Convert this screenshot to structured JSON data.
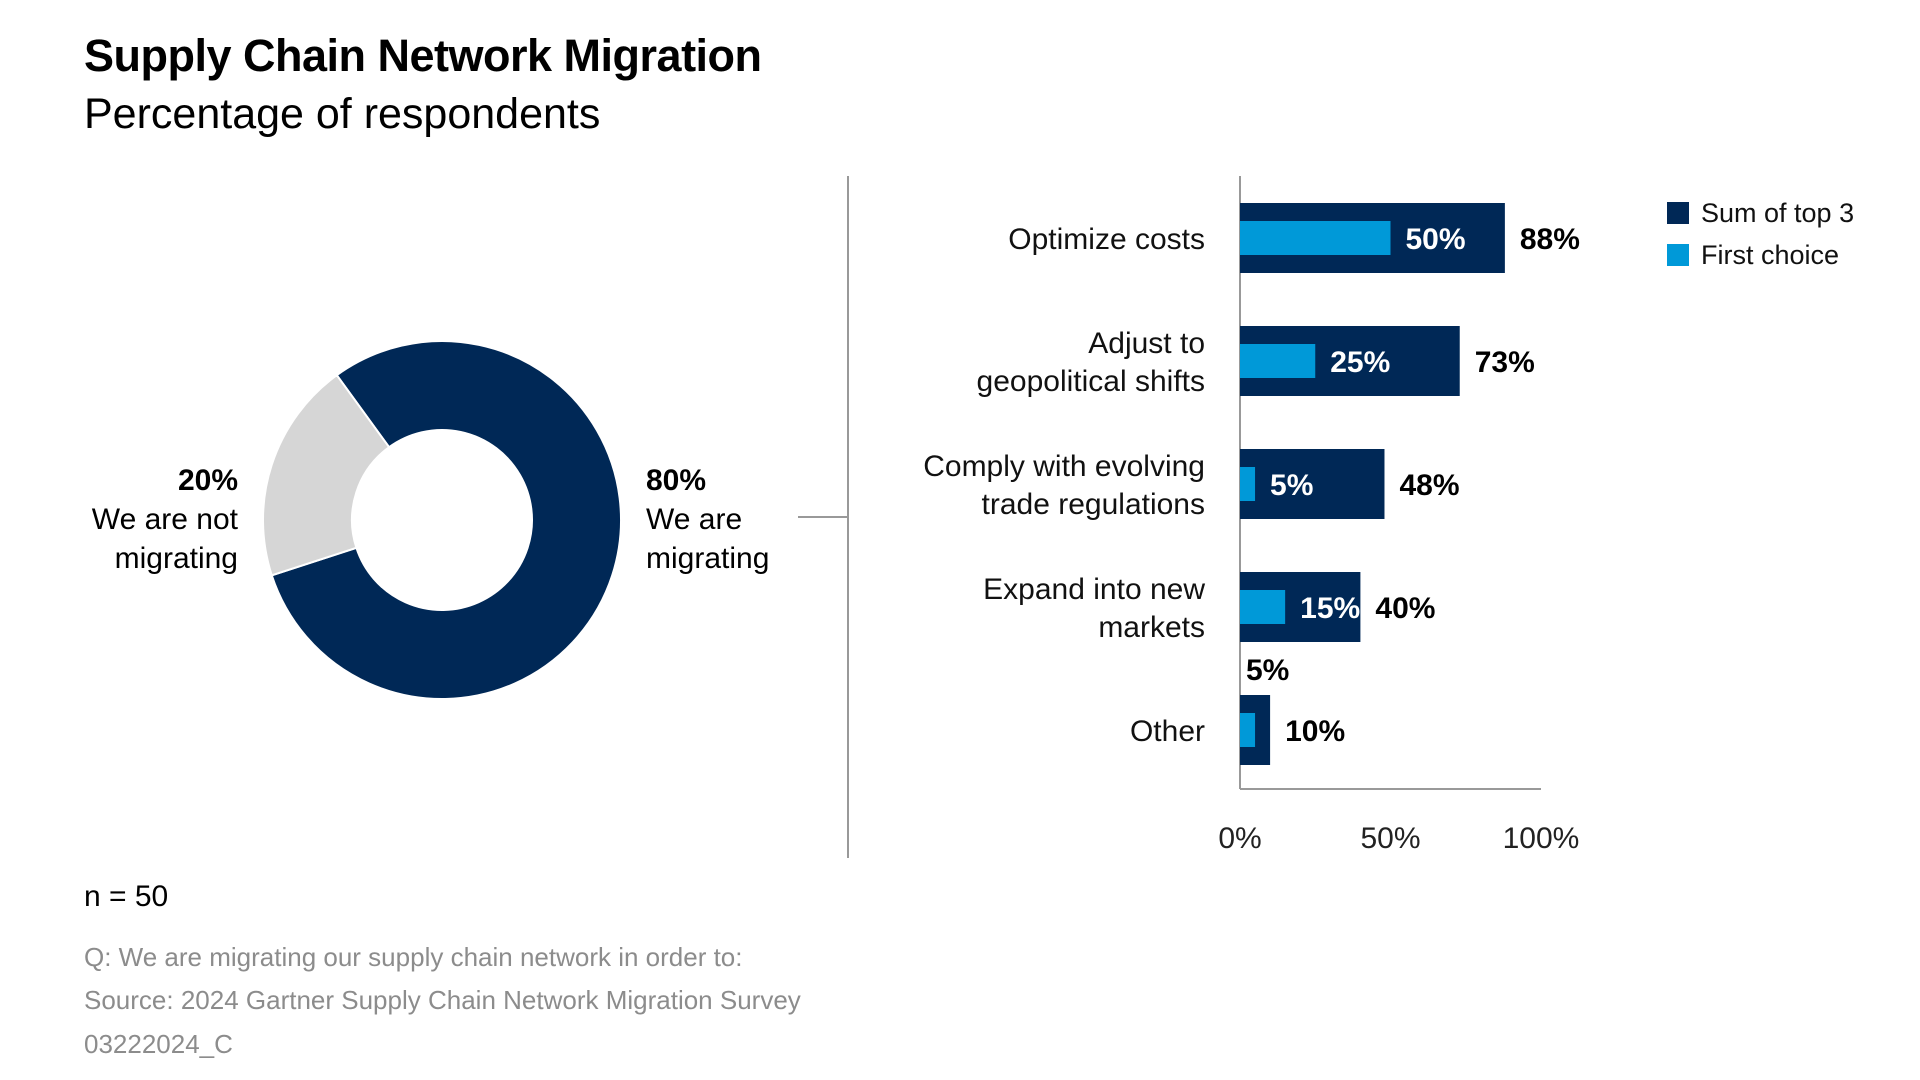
{
  "title": "Supply Chain Network Migration",
  "subtitle": "Percentage of respondents",
  "sample": "n = 50",
  "footnotes": {
    "question": "Q: We are migrating our supply chain network in order to:",
    "source": "Source: 2024 Gartner Supply Chain Network Migration Survey",
    "code": "03222024_C"
  },
  "colors": {
    "navy": "#002856",
    "light_blue": "#0099d8",
    "gray": "#d6d6d6",
    "axis": "#999999"
  },
  "chart_data": [
    {
      "type": "pie",
      "variant": "donut",
      "slices": [
        {
          "label": "We are migrating",
          "label_lines": [
            "We are",
            "migrating"
          ],
          "value": 80,
          "value_label": "80%"
        },
        {
          "label": "We are not migrating",
          "label_lines": [
            "We are not",
            "migrating"
          ],
          "value": 20,
          "value_label": "20%"
        }
      ]
    },
    {
      "type": "bar",
      "orientation": "horizontal",
      "categories": [
        "Optimize costs",
        "Adjust to geopolitical shifts",
        "Comply with evolving trade regulations",
        "Expand into new markets",
        "Other"
      ],
      "category_lines": [
        [
          "Optimize costs"
        ],
        [
          "Adjust to",
          "geopolitical shifts"
        ],
        [
          "Comply with evolving",
          "trade regulations"
        ],
        [
          "Expand into new",
          "markets"
        ],
        [
          "Other"
        ]
      ],
      "series": [
        {
          "name": "Sum of top 3",
          "values": [
            88,
            73,
            48,
            40,
            10
          ]
        },
        {
          "name": "First choice",
          "values": [
            50,
            25,
            5,
            15,
            5
          ]
        }
      ],
      "xlim": [
        0,
        100
      ],
      "xticks": [
        "0%",
        "50%",
        "100%"
      ],
      "legend_position": "top-right",
      "grid": false
    }
  ]
}
